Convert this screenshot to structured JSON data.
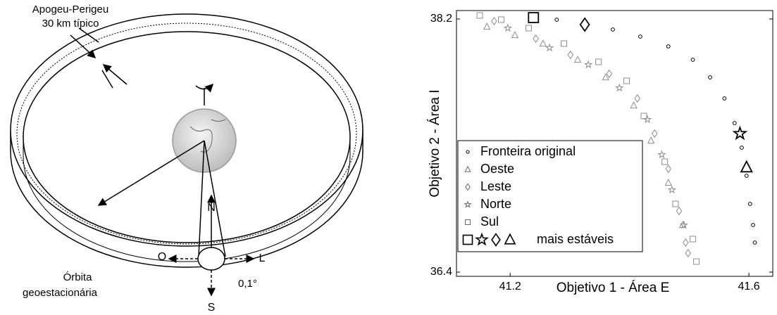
{
  "diagram": {
    "orbit_note": [
      "Apogeu-Perigeu",
      "30 km típico"
    ],
    "orbit_label": [
      "Órbita",
      "geoestacionária"
    ],
    "directions": {
      "north": "N",
      "south": "S",
      "west": "O",
      "east": "L"
    },
    "angle": "0,1°"
  },
  "chart_data": {
    "type": "scatter",
    "xlabel": "Objetivo 1 - Área E",
    "ylabel": "Objetivo 2 - Área I",
    "xlim": [
      41.11,
      41.64
    ],
    "ylim": [
      36.37,
      38.26
    ],
    "xticks": [
      41.2,
      41.6
    ],
    "yticks": [
      38.2,
      36.4
    ],
    "legend": "lower-left",
    "series": [
      {
        "name": "Fronteira original",
        "marker": "circle",
        "color": "#000000",
        "x": [
          41.243,
          41.278,
          41.325,
          41.372,
          41.418,
          41.465,
          41.506,
          41.535,
          41.559,
          41.576,
          41.588,
          41.596,
          41.602,
          41.607,
          41.61
        ],
        "values": [
          38.21,
          38.195,
          38.165,
          38.125,
          38.075,
          38.005,
          37.91,
          37.785,
          37.635,
          37.46,
          37.285,
          37.085,
          36.885,
          36.735,
          36.61
        ]
      },
      {
        "name": "Oeste",
        "marker": "triangle",
        "color": "#8c8c8c",
        "x": [
          41.161,
          41.208,
          41.255,
          41.313,
          41.36,
          41.407,
          41.436,
          41.465,
          41.489
        ],
        "values": [
          38.145,
          38.085,
          38.025,
          37.91,
          37.785,
          37.585,
          37.335,
          37.035,
          36.735
        ]
      },
      {
        "name": "Leste",
        "marker": "diamond",
        "color": "#8c8c8c",
        "x": [
          41.173,
          41.243,
          41.301,
          41.366,
          41.413,
          41.442,
          41.465,
          41.483,
          41.494,
          41.498
        ],
        "values": [
          38.185,
          38.06,
          37.945,
          37.81,
          37.635,
          37.385,
          37.135,
          36.835,
          36.61,
          36.535
        ]
      },
      {
        "name": "Norte",
        "marker": "star",
        "color": "#8c8c8c",
        "x": [
          41.196,
          41.266,
          41.331,
          41.383,
          41.43,
          41.454,
          41.471,
          41.491
        ],
        "values": [
          38.135,
          37.995,
          37.875,
          37.71,
          37.485,
          37.235,
          36.985,
          36.735
        ]
      },
      {
        "name": "Sul",
        "marker": "square",
        "color": "#8c8c8c",
        "x": [
          41.149,
          41.185,
          41.231,
          41.29,
          41.348,
          41.395,
          41.424,
          41.459,
          41.477,
          41.506,
          41.512
        ],
        "values": [
          38.225,
          38.195,
          38.135,
          38.025,
          37.895,
          37.76,
          37.51,
          37.185,
          36.885,
          36.635,
          36.475
        ]
      }
    ],
    "highlight": {
      "name": "mais estáveis",
      "color": "#000000",
      "points": [
        {
          "marker": "square",
          "x": 41.239,
          "y": 38.21
        },
        {
          "marker": "star",
          "x": 41.585,
          "y": 37.385
        },
        {
          "marker": "diamond",
          "x": 41.325,
          "y": 38.16
        },
        {
          "marker": "triangle",
          "x": 41.596,
          "y": 37.145
        }
      ]
    }
  }
}
